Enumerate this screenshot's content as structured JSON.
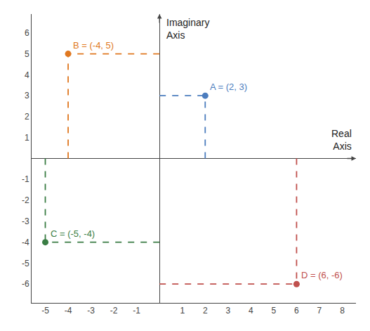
{
  "chart_data": {
    "type": "scatter",
    "x": [
      2,
      -4,
      -5,
      6
    ],
    "values": [
      3,
      5,
      -4,
      -6
    ],
    "colors": [
      "#4C7DBE",
      "#E07820",
      "#3A7D44",
      "#C0504D"
    ],
    "annotations": [
      "A = (2, 3)",
      "B = (-4, 5)",
      "C = (-5, -4)",
      "D = (6, -6)"
    ],
    "xlabel": "Real\nAxis",
    "ylabel": "Imaginary\nAxis",
    "xlim": [
      -5.6,
      8.6
    ],
    "ylim": [
      -6.9,
      6.9
    ],
    "xticks": [
      -5,
      -4,
      -3,
      -2,
      -1,
      1,
      2,
      3,
      4,
      5,
      6,
      7,
      8
    ],
    "yticks": [
      -6,
      -5,
      -4,
      -3,
      -2,
      -1,
      1,
      2,
      3,
      4,
      5,
      6
    ],
    "marker": "circle",
    "line_style": "dashed",
    "grid": false
  }
}
